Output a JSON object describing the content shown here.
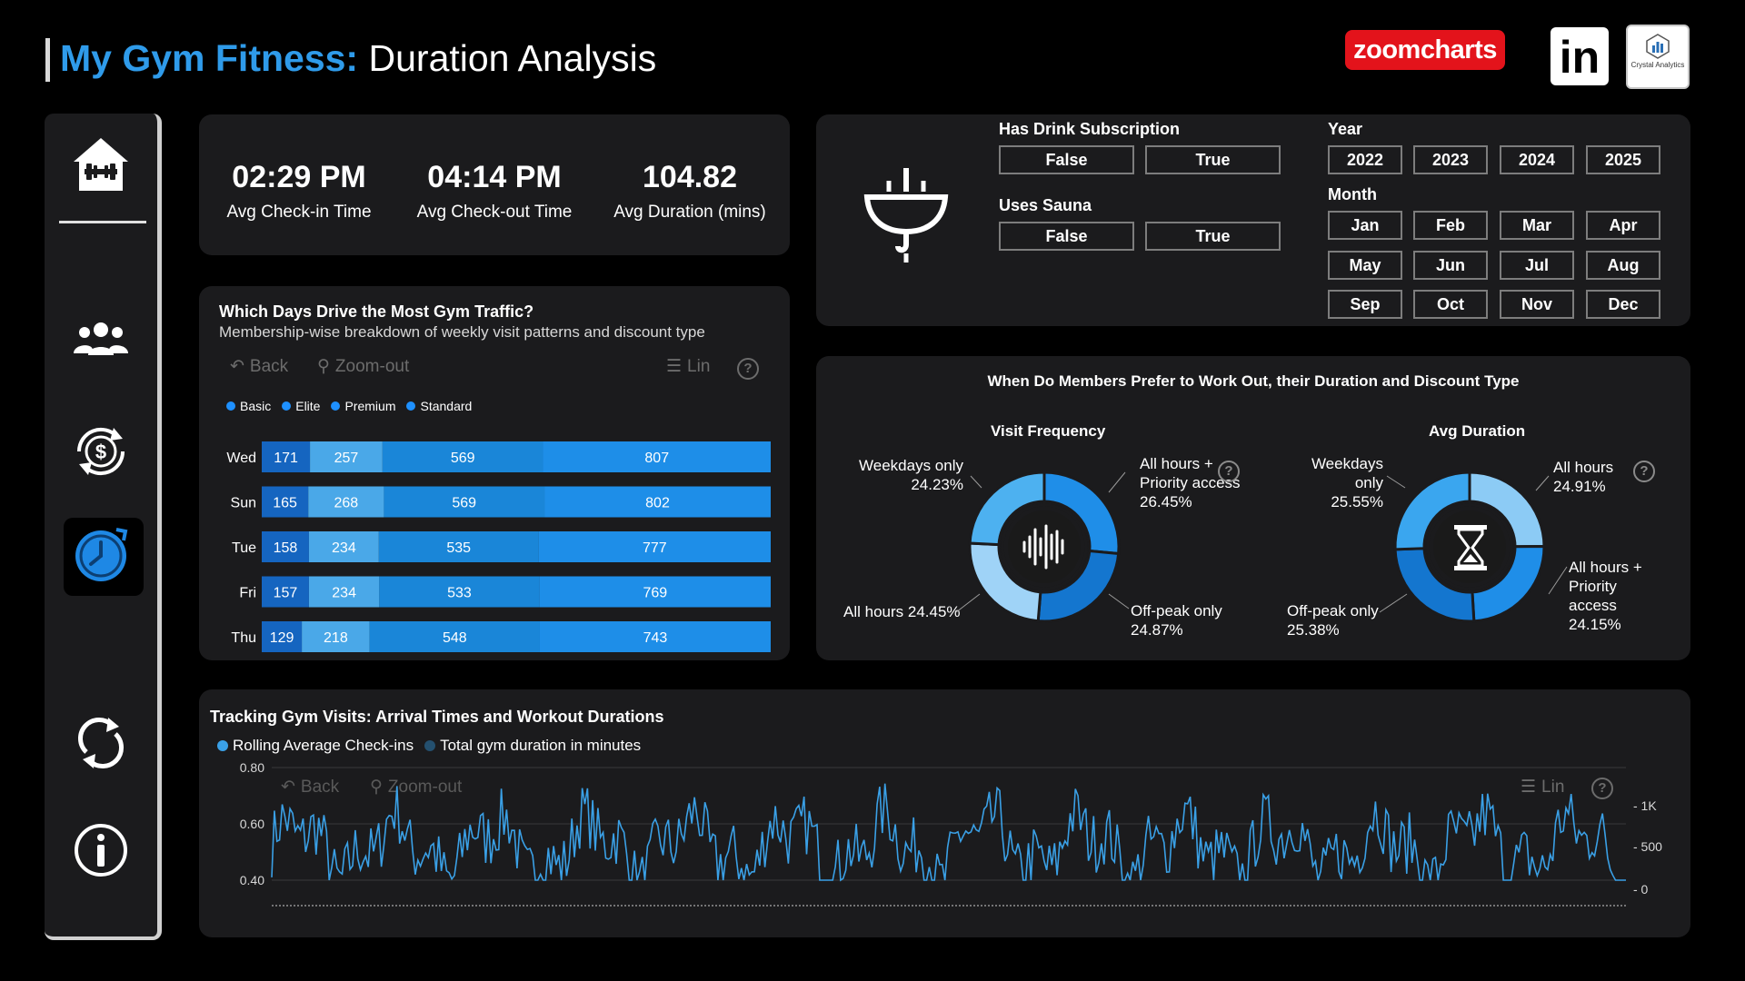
{
  "header": {
    "title_accent": "My Gym Fitness:",
    "title_rest": "Duration Analysis",
    "zoomcharts_logo": "zoomcharts",
    "linkedin_logo": "in",
    "crystal_logo_text": "Crystal Analytics"
  },
  "sidebar": {
    "items": [
      {
        "name": "home",
        "icon": "gym-home-icon"
      },
      {
        "name": "members",
        "icon": "people-icon"
      },
      {
        "name": "revenue",
        "icon": "dollar-cycle-icon"
      },
      {
        "name": "duration",
        "icon": "clock-icon",
        "active": true
      },
      {
        "name": "reset",
        "icon": "refresh-icon"
      },
      {
        "name": "info",
        "icon": "info-icon"
      }
    ]
  },
  "kpis": [
    {
      "value": "02:29 PM",
      "label": "Avg Check-in Time"
    },
    {
      "value": "04:14 PM",
      "label": "Avg Check-out Time"
    },
    {
      "value": "104.82",
      "label": "Avg Duration (mins)"
    }
  ],
  "filters": {
    "drink": {
      "label": "Has Drink Subscription",
      "options": [
        "False",
        "True"
      ]
    },
    "sauna": {
      "label": "Uses Sauna",
      "options": [
        "False",
        "True"
      ]
    },
    "year": {
      "label": "Year",
      "options": [
        "2022",
        "2023",
        "2024",
        "2025"
      ]
    },
    "month": {
      "label": "Month",
      "options": [
        "Jan",
        "Feb",
        "Mar",
        "Apr",
        "May",
        "Jun",
        "Jul",
        "Aug",
        "Sep",
        "Oct",
        "Nov",
        "Dec"
      ]
    }
  },
  "toolbar": {
    "back": "Back",
    "zoom_out": "Zoom-out",
    "lin": "Lin",
    "help": "?"
  },
  "colors": {
    "basic": "#1565c0",
    "elite": "#4aa8e8",
    "premium": "#1a86d8",
    "standard": "#1e8ee8",
    "panel": "#1b1b1d",
    "accent": "#2f9bea",
    "line": "#3aa0e6"
  },
  "bar_panel": {
    "title": "Which Days Drive the Most Gym Traffic?",
    "subtitle": "Membership-wise breakdown of weekly visit patterns and discount type"
  },
  "donut_panel": {
    "title": "When Do Members Prefer to Work Out, their Duration and Discount Type",
    "visit": {
      "title": "Visit Frequency",
      "labels": {
        "weekdays": [
          "Weekdays only",
          "24.23%"
        ],
        "allhours_priority": [
          "All hours +",
          "Priority access",
          "26.45%"
        ],
        "allhours": "All hours 24.45%",
        "offpeak": [
          "Off-peak only",
          "24.87%"
        ]
      }
    },
    "duration": {
      "title": "Avg Duration",
      "labels": {
        "weekdays": [
          "Weekdays",
          "only",
          "25.55%"
        ],
        "allhours": [
          "All hours",
          "24.91%"
        ],
        "allhours_priority": [
          "All hours +",
          "Priority",
          "access",
          "24.15%"
        ],
        "offpeak": [
          "Off-peak only",
          "25.38%"
        ]
      }
    }
  },
  "line_panel": {
    "title": "Tracking Gym Visits: Arrival Times and Workout Durations",
    "legend": [
      "Rolling Average Check-ins",
      "Total gym duration in minutes"
    ],
    "left_axis_ticks": [
      "0.80",
      "0.60",
      "0.40"
    ],
    "right_axis_ticks": [
      "1K",
      "500",
      "0"
    ]
  },
  "chart_data": [
    {
      "type": "bar",
      "title": "Which Days Drive the Most Gym Traffic?",
      "subtitle": "Membership-wise breakdown of weekly visit patterns and discount type",
      "orientation": "horizontal",
      "stacked": true,
      "categories": [
        "Wed",
        "Sun",
        "Tue",
        "Fri",
        "Thu"
      ],
      "series": [
        {
          "name": "Basic",
          "values": [
            171,
            165,
            158,
            157,
            129
          ]
        },
        {
          "name": "Elite",
          "values": [
            257,
            268,
            234,
            234,
            218
          ]
        },
        {
          "name": "Premium",
          "values": [
            569,
            569,
            535,
            533,
            548
          ]
        },
        {
          "name": "Standard",
          "values": [
            807,
            802,
            777,
            769,
            743
          ]
        }
      ],
      "legend_position": "top-left"
    },
    {
      "type": "pie",
      "title": "Visit Frequency",
      "donut": true,
      "categories": [
        "All hours + Priority access",
        "Off-peak only",
        "All hours",
        "Weekdays only"
      ],
      "values": [
        26.45,
        24.87,
        24.45,
        24.23
      ]
    },
    {
      "type": "pie",
      "title": "Avg Duration",
      "donut": true,
      "categories": [
        "All hours",
        "All hours + Priority access",
        "Off-peak only",
        "Weekdays only"
      ],
      "values": [
        24.91,
        24.15,
        25.38,
        25.55
      ]
    },
    {
      "type": "line",
      "title": "Tracking Gym Visits: Arrival Times and Workout Durations",
      "series_names": [
        "Rolling Average Check-ins",
        "Total gym duration in minutes"
      ],
      "left_ylim": [
        0.4,
        0.8
      ],
      "right_ylim": [
        0,
        1000
      ],
      "note_points": "dense daily series, approx 500 points oscillating between 0.40 and 0.76",
      "grid": true
    }
  ]
}
